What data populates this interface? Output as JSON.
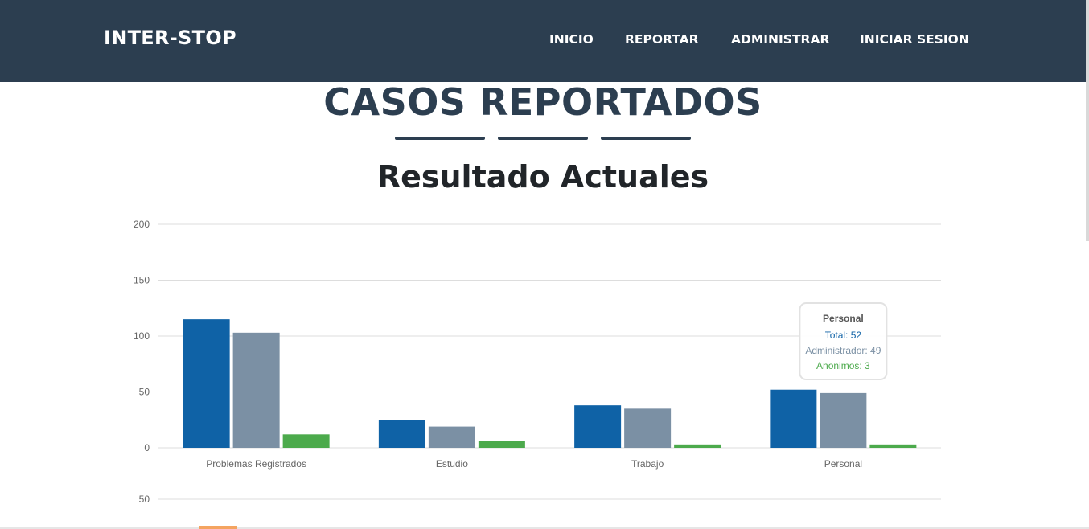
{
  "navbar": {
    "brand": "INTER-STOP",
    "items": [
      "INICIO",
      "REPORTAR",
      "ADMINISTRAR",
      "INICIAR SESION"
    ]
  },
  "section": {
    "title": "CASOS REPORTADOS"
  },
  "chart_data": {
    "type": "bar",
    "title": "Resultado Actuales",
    "xlabel": "",
    "ylabel": "",
    "ylim": [
      0,
      200
    ],
    "yticks": [
      0,
      50,
      100,
      150,
      200
    ],
    "categories": [
      "Problemas Registrados",
      "Estudio",
      "Trabajo",
      "Personal"
    ],
    "series": [
      {
        "name": "Total",
        "color": "#0f62a6",
        "values": [
          115,
          25,
          38,
          52
        ]
      },
      {
        "name": "Administrador",
        "color": "#7b90a4",
        "values": [
          103,
          19,
          35,
          49
        ]
      },
      {
        "name": "Anonimos",
        "color": "#4caa4c",
        "values": [
          12,
          6,
          3,
          3
        ]
      }
    ],
    "grid": true,
    "tooltip": {
      "category": "Personal",
      "lines": [
        "Total: 52",
        "Administrador: 49",
        "Anonimos: 3"
      ]
    },
    "second_chart_partial": {
      "visible_tick": "50"
    }
  }
}
